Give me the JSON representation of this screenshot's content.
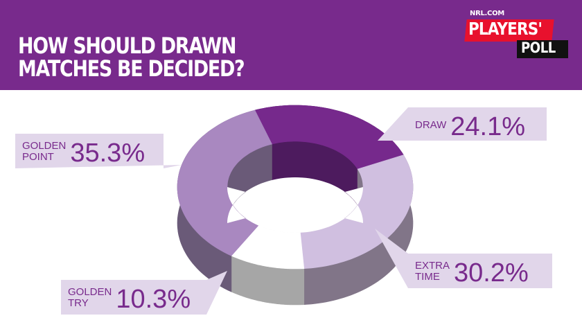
{
  "header": {
    "title_line1": "HOW SHOULD DRAWN",
    "title_line2": "MATCHES BE DECIDED?"
  },
  "logo": {
    "small_text": "NRL.COM",
    "main_text": "PLAYERS'",
    "sub_text": "POLL"
  },
  "chart_data": {
    "type": "pie",
    "title": "HOW SHOULD DRAWN MATCHES BE DECIDED?",
    "categories": [
      "DRAW",
      "EXTRA TIME",
      "GOLDEN TRY",
      "GOLDEN POINT"
    ],
    "values": [
      24.1,
      30.2,
      10.3,
      35.3
    ],
    "unit": "%",
    "labels": [
      {
        "word1": "DRAW",
        "word2": "",
        "pct": "24.1%"
      },
      {
        "word1": "EXTRA",
        "word2": "TIME",
        "pct": "30.2%"
      },
      {
        "word1": "GOLDEN",
        "word2": "TRY",
        "pct": "10.3%"
      },
      {
        "word1": "GOLDEN",
        "word2": "POINT",
        "pct": "35.3%"
      }
    ],
    "colors": [
      "#76298c",
      "#d0bfe0",
      "#ffffff",
      "#a988c0"
    ],
    "side_colors": [
      "#4d1b5e",
      "#817588",
      "#a6a6a6",
      "#6a5a78"
    ],
    "start_angle_deg": 340,
    "style": "3d-donut"
  }
}
